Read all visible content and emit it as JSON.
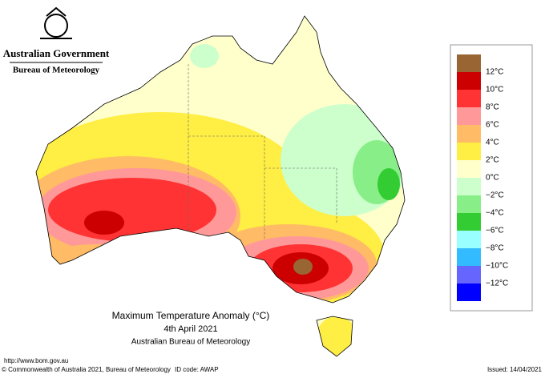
{
  "header": {
    "government": "Australian Government",
    "bureau": "Bureau of Meteorology"
  },
  "legend": {
    "colors": [
      "#996633",
      "#cc0000",
      "#ff3333",
      "#ff9999",
      "#ffbb66",
      "#ffee44",
      "#ffffcc",
      "#ccffcc",
      "#88ee88",
      "#33cc33",
      "#99ffff",
      "#33bbff",
      "#6666ff",
      "#0000ff"
    ],
    "labels": [
      "12°C",
      "10°C",
      "8°C",
      "6°C",
      "4°C",
      "2°C",
      "0°C",
      "−2°C",
      "−4°C",
      "−6°C",
      "−8°C",
      "−10°C",
      "−12°C"
    ]
  },
  "caption": {
    "title": "Maximum Temperature Anomaly (°C)",
    "date": "4th April 2021",
    "source": "Australian Bureau of Meteorology"
  },
  "footer": {
    "url": "http://www.bom.gov.au",
    "copyright": "© Commonwealth of Australia 2021, Bureau of Meteorology",
    "id_code": "ID code: AWAP",
    "issued": "Issued: 14/04/2021"
  }
}
